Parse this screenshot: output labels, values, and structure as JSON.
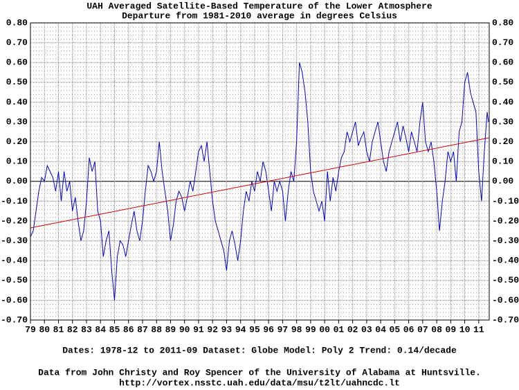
{
  "chart_data": {
    "type": "line",
    "title": "UAH Averaged Satellite-Based Temperature of the Lower Atmosphere",
    "subtitle": "Departure from 1981-2010 average in degrees Celsius",
    "footer": [
      "Dates: 1978-12 to 2011-09  Dataset: Globe  Model: Poly 2  Trend:  0.14/decade",
      "Data from John Christy and Roy Spencer of the University of Alabama at Huntsville.",
      "http://vortex.nsstc.uah.edu/data/msu/t2lt/uahncdc.lt"
    ],
    "xlim": [
      1979,
      2011.75
    ],
    "ylim": [
      -0.7,
      0.8
    ],
    "grid": true,
    "xticks": [
      {
        "value": 1979,
        "label": "79"
      },
      {
        "value": 1980,
        "label": "80"
      },
      {
        "value": 1981,
        "label": "81"
      },
      {
        "value": 1982,
        "label": "82"
      },
      {
        "value": 1983,
        "label": "83"
      },
      {
        "value": 1984,
        "label": "84"
      },
      {
        "value": 1985,
        "label": "85"
      },
      {
        "value": 1986,
        "label": "86"
      },
      {
        "value": 1987,
        "label": "87"
      },
      {
        "value": 1988,
        "label": "88"
      },
      {
        "value": 1989,
        "label": "89"
      },
      {
        "value": 1990,
        "label": "90"
      },
      {
        "value": 1991,
        "label": "91"
      },
      {
        "value": 1992,
        "label": "92"
      },
      {
        "value": 1993,
        "label": "93"
      },
      {
        "value": 1994,
        "label": "94"
      },
      {
        "value": 1995,
        "label": "95"
      },
      {
        "value": 1996,
        "label": "96"
      },
      {
        "value": 1997,
        "label": "97"
      },
      {
        "value": 1998,
        "label": "98"
      },
      {
        "value": 1999,
        "label": "99"
      },
      {
        "value": 2000,
        "label": "00"
      },
      {
        "value": 2001,
        "label": "01"
      },
      {
        "value": 2002,
        "label": "02"
      },
      {
        "value": 2003,
        "label": "03"
      },
      {
        "value": 2004,
        "label": "04"
      },
      {
        "value": 2005,
        "label": "05"
      },
      {
        "value": 2006,
        "label": "06"
      },
      {
        "value": 2007,
        "label": "07"
      },
      {
        "value": 2008,
        "label": "08"
      },
      {
        "value": 2009,
        "label": "09"
      },
      {
        "value": 2010,
        "label": "10"
      },
      {
        "value": 2011,
        "label": "11"
      }
    ],
    "yticks": [
      {
        "value": 0.8,
        "label": "0.80"
      },
      {
        "value": 0.7,
        "label": "0.70"
      },
      {
        "value": 0.6,
        "label": "0.60"
      },
      {
        "value": 0.5,
        "label": "0.50"
      },
      {
        "value": 0.4,
        "label": "0.40"
      },
      {
        "value": 0.3,
        "label": "0.30"
      },
      {
        "value": 0.2,
        "label": "0.20"
      },
      {
        "value": 0.1,
        "label": "0.10"
      },
      {
        "value": 0,
        "label": "0.00"
      },
      {
        "value": -0.1,
        "label": "-0.10"
      },
      {
        "value": -0.2,
        "label": "-0.20"
      },
      {
        "value": -0.3,
        "label": "-0.30"
      },
      {
        "value": -0.4,
        "label": "-0.40"
      },
      {
        "value": -0.5,
        "label": "-0.50"
      },
      {
        "value": -0.6,
        "label": "-0.60"
      },
      {
        "value": -0.7,
        "label": "-0.70"
      }
    ],
    "x": [
      1979.0,
      1979.2,
      1979.4,
      1979.6,
      1979.8,
      1980.0,
      1980.2,
      1980.4,
      1980.6,
      1980.8,
      1981.0,
      1981.2,
      1981.4,
      1981.6,
      1981.8,
      1982.0,
      1982.2,
      1982.4,
      1982.6,
      1982.8,
      1983.0,
      1983.2,
      1983.4,
      1983.6,
      1983.8,
      1984.0,
      1984.2,
      1984.4,
      1984.6,
      1984.8,
      1985.0,
      1985.2,
      1985.4,
      1985.6,
      1985.8,
      1986.0,
      1986.2,
      1986.4,
      1986.6,
      1986.8,
      1987.0,
      1987.2,
      1987.4,
      1987.6,
      1987.8,
      1988.0,
      1988.2,
      1988.4,
      1988.6,
      1988.8,
      1989.0,
      1989.2,
      1989.4,
      1989.6,
      1989.8,
      1990.0,
      1990.2,
      1990.4,
      1990.6,
      1990.8,
      1991.0,
      1991.2,
      1991.4,
      1991.6,
      1991.8,
      1992.0,
      1992.2,
      1992.4,
      1992.6,
      1992.8,
      1993.0,
      1993.2,
      1993.4,
      1993.6,
      1993.8,
      1994.0,
      1994.2,
      1994.4,
      1994.6,
      1994.8,
      1995.0,
      1995.2,
      1995.4,
      1995.6,
      1995.8,
      1996.0,
      1996.2,
      1996.4,
      1996.6,
      1996.8,
      1997.0,
      1997.2,
      1997.4,
      1997.6,
      1997.8,
      1998.0,
      1998.2,
      1998.4,
      1998.6,
      1998.8,
      1999.0,
      1999.2,
      1999.4,
      1999.6,
      1999.8,
      2000.0,
      2000.2,
      2000.4,
      2000.6,
      2000.8,
      2001.0,
      2001.2,
      2001.4,
      2001.6,
      2001.8,
      2002.0,
      2002.2,
      2002.4,
      2002.6,
      2002.8,
      2003.0,
      2003.2,
      2003.4,
      2003.6,
      2003.8,
      2004.0,
      2004.2,
      2004.4,
      2004.6,
      2004.8,
      2005.0,
      2005.2,
      2005.4,
      2005.6,
      2005.8,
      2006.0,
      2006.2,
      2006.4,
      2006.6,
      2006.8,
      2007.0,
      2007.2,
      2007.4,
      2007.6,
      2007.8,
      2008.0,
      2008.2,
      2008.4,
      2008.6,
      2008.8,
      2009.0,
      2009.2,
      2009.4,
      2009.6,
      2009.8,
      2010.0,
      2010.2,
      2010.4,
      2010.6,
      2010.8,
      2011.0,
      2011.2,
      2011.4,
      2011.6,
      2011.7
    ],
    "series": [
      {
        "color": "#0000cc",
        "values": [
          -0.28,
          -0.25,
          -0.15,
          -0.05,
          0.02,
          0.0,
          0.08,
          0.05,
          0.02,
          -0.05,
          0.05,
          -0.1,
          0.05,
          -0.05,
          0.0,
          -0.15,
          -0.08,
          -0.2,
          -0.3,
          -0.25,
          -0.1,
          0.12,
          0.05,
          0.1,
          -0.15,
          -0.2,
          -0.38,
          -0.3,
          -0.25,
          -0.45,
          -0.6,
          -0.38,
          -0.3,
          -0.32,
          -0.38,
          -0.3,
          -0.22,
          -0.15,
          -0.25,
          -0.3,
          -0.2,
          -0.05,
          0.08,
          0.05,
          0.0,
          0.05,
          0.2,
          0.05,
          -0.05,
          -0.15,
          -0.3,
          -0.22,
          -0.1,
          -0.05,
          -0.08,
          -0.15,
          -0.08,
          0.0,
          -0.05,
          0.05,
          0.15,
          0.18,
          0.1,
          0.2,
          0.05,
          -0.1,
          -0.2,
          -0.25,
          -0.3,
          -0.35,
          -0.45,
          -0.3,
          -0.25,
          -0.32,
          -0.4,
          -0.3,
          -0.15,
          -0.05,
          -0.1,
          0.0,
          -0.05,
          0.05,
          0.0,
          0.1,
          0.05,
          -0.05,
          -0.15,
          0.0,
          -0.05,
          0.0,
          -0.05,
          -0.2,
          -0.05,
          0.05,
          0.0,
          0.2,
          0.6,
          0.55,
          0.45,
          0.3,
          0.05,
          -0.05,
          -0.1,
          -0.15,
          -0.1,
          -0.2,
          0.05,
          -0.1,
          0.02,
          -0.05,
          0.05,
          0.12,
          0.15,
          0.25,
          0.2,
          0.25,
          0.3,
          0.18,
          0.22,
          0.25,
          0.15,
          0.1,
          0.2,
          0.25,
          0.3,
          0.2,
          0.1,
          0.05,
          0.15,
          0.2,
          0.25,
          0.3,
          0.2,
          0.28,
          0.22,
          0.15,
          0.25,
          0.2,
          0.15,
          0.3,
          0.4,
          0.2,
          0.15,
          0.2,
          0.1,
          -0.05,
          -0.25,
          -0.1,
          0.0,
          0.15,
          0.1,
          0.15,
          0.0,
          0.25,
          0.3,
          0.5,
          0.55,
          0.45,
          0.4,
          0.35,
          0.05,
          -0.1,
          0.15,
          0.35,
          0.3
        ]
      }
    ],
    "trend": {
      "color": "#cc0000",
      "x": [
        1979,
        2011.75
      ],
      "values": [
        -0.235,
        0.22
      ]
    }
  }
}
